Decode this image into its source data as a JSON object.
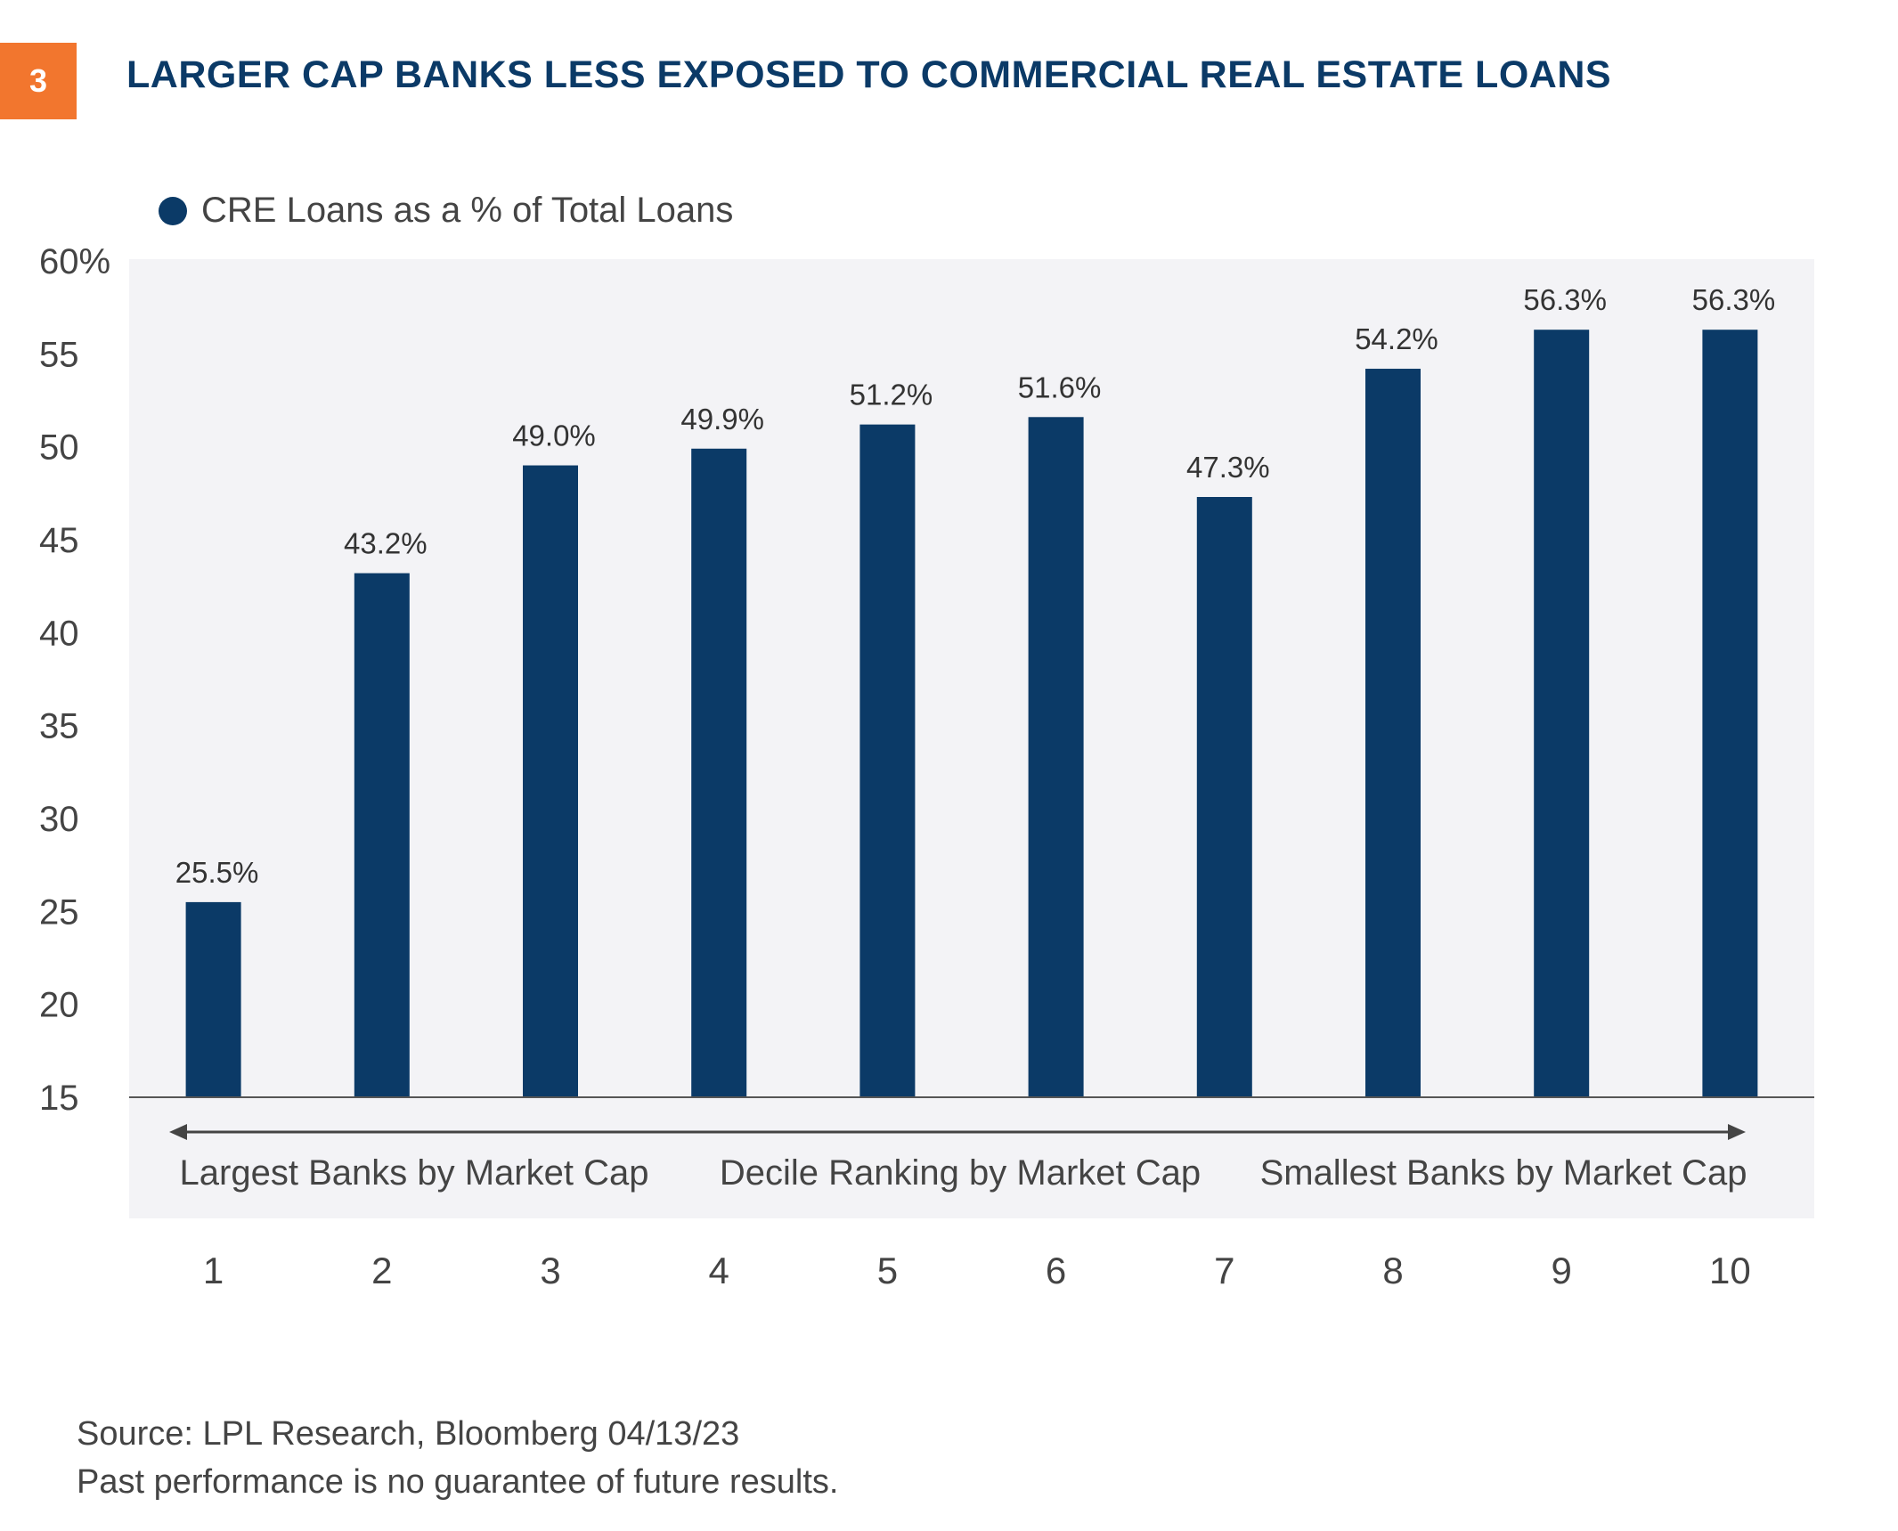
{
  "badge": "3",
  "title": "LARGER CAP BANKS LESS EXPOSED TO COMMERCIAL REAL ESTATE LOANS",
  "colors": {
    "bar": "#0b3a67",
    "badge": "#f2762e",
    "plot_bg": "#f3f3f6"
  },
  "chart_data": {
    "type": "bar",
    "categories": [
      "1",
      "2",
      "3",
      "4",
      "5",
      "6",
      "7",
      "8",
      "9",
      "10"
    ],
    "series": [
      {
        "name": "CRE Loans as a % of Total Loans",
        "values": [
          25.5,
          43.2,
          49.0,
          49.9,
          51.2,
          51.6,
          47.3,
          54.2,
          56.3,
          56.3
        ]
      }
    ],
    "data_labels": [
      "25.5%",
      "43.2%",
      "49.0%",
      "49.9%",
      "51.2%",
      "51.6%",
      "47.3%",
      "54.2%",
      "56.3%",
      "56.3%"
    ],
    "yticks": [
      "15",
      "20",
      "25",
      "30",
      "35",
      "40",
      "45",
      "50",
      "55",
      "60%"
    ],
    "ytick_values": [
      15,
      20,
      25,
      30,
      35,
      40,
      45,
      50,
      55,
      60
    ],
    "ylim": [
      15,
      60
    ],
    "annotations": [
      "Largest Banks by Market Cap",
      "Decile Ranking by Market Cap",
      "Smallest Banks by Market Cap"
    ],
    "grid": false,
    "legend_position": "top-left"
  },
  "source": {
    "line1": "Source: LPL Research, Bloomberg  04/13/23",
    "line2": "Past performance is no guarantee of future results."
  }
}
